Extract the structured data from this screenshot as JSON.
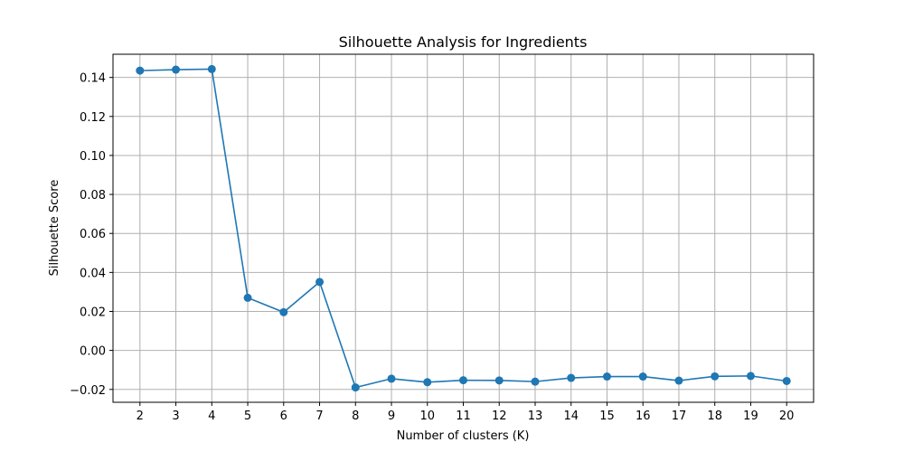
{
  "chart_data": {
    "type": "line",
    "title": "Silhouette Analysis for Ingredients",
    "xlabel": "Number of clusters (K)",
    "ylabel": "Silhouette Score",
    "x": [
      2,
      3,
      4,
      5,
      6,
      7,
      8,
      9,
      10,
      11,
      12,
      13,
      14,
      15,
      16,
      17,
      18,
      19,
      20
    ],
    "series": [
      {
        "values": [
          0.1435,
          0.144,
          0.1443,
          0.027,
          0.0196,
          0.0351,
          -0.019,
          -0.0145,
          -0.0163,
          -0.0153,
          -0.0154,
          -0.016,
          -0.0141,
          -0.0134,
          -0.0134,
          -0.0155,
          -0.0133,
          -0.0131,
          -0.0157
        ],
        "color": "#1f77b4",
        "marker": "circle"
      }
    ],
    "xlim": [
      1.25,
      20.75
    ],
    "ylim": [
      -0.0266,
      0.1519
    ],
    "xticks": [
      "2",
      "3",
      "4",
      "5",
      "6",
      "7",
      "8",
      "9",
      "10",
      "11",
      "12",
      "13",
      "14",
      "15",
      "16",
      "17",
      "18",
      "19",
      "20"
    ],
    "yticks": [
      "−0.02",
      "0.00",
      "0.02",
      "0.04",
      "0.06",
      "0.08",
      "0.10",
      "0.12",
      "0.14"
    ],
    "ytick_values": [
      -0.02,
      0.0,
      0.02,
      0.04,
      0.06,
      0.08,
      0.1,
      0.12,
      0.14
    ],
    "grid": true,
    "grid_color": "#b0b0b0"
  }
}
